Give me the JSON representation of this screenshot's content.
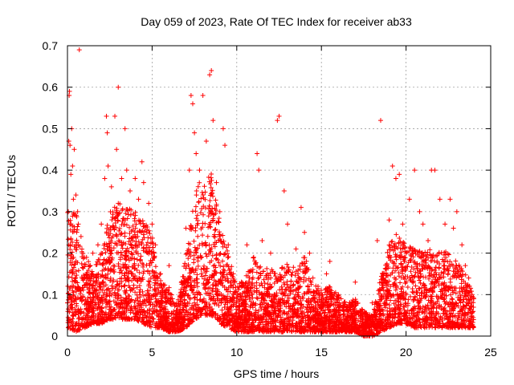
{
  "chart_data": {
    "type": "scatter",
    "title": "Day 059 of 2023, Rate Of TEC Index for receiver ab33",
    "xlabel": "GPS time / hours",
    "ylabel": "ROTI / TECUs",
    "xlim": [
      0,
      25
    ],
    "ylim": [
      0,
      0.7
    ],
    "x_ticks": [
      "0",
      "5",
      "10",
      "15",
      "20",
      "25"
    ],
    "y_ticks": [
      "0",
      "0.1",
      "0.2",
      "0.3",
      "0.4",
      "0.5",
      "0.6",
      "0.7"
    ],
    "grid": true,
    "marker": "+",
    "color": "#ff0000",
    "series": [
      {
        "points": [
          [
            0.0,
            0.08
          ],
          [
            0.05,
            0.3
          ],
          [
            0.08,
            0.47
          ],
          [
            0.1,
            0.58
          ],
          [
            0.12,
            0.59
          ],
          [
            0.15,
            0.46
          ],
          [
            0.2,
            0.39
          ],
          [
            0.25,
            0.5
          ],
          [
            0.3,
            0.41
          ],
          [
            0.35,
            0.33
          ],
          [
            0.4,
            0.45
          ],
          [
            0.5,
            0.34
          ],
          [
            0.6,
            0.3
          ],
          [
            0.7,
            0.69
          ],
          [
            0.8,
            0.24
          ],
          [
            1.0,
            0.19
          ],
          [
            1.2,
            0.14
          ],
          [
            1.5,
            0.2
          ],
          [
            1.8,
            0.22
          ],
          [
            2.0,
            0.27
          ],
          [
            2.2,
            0.38
          ],
          [
            2.3,
            0.53
          ],
          [
            2.35,
            0.49
          ],
          [
            2.4,
            0.41
          ],
          [
            2.6,
            0.36
          ],
          [
            2.8,
            0.53
          ],
          [
            2.9,
            0.45
          ],
          [
            3.0,
            0.6
          ],
          [
            3.2,
            0.38
          ],
          [
            3.4,
            0.5
          ],
          [
            3.5,
            0.4
          ],
          [
            3.7,
            0.35
          ],
          [
            4.0,
            0.38
          ],
          [
            4.2,
            0.33
          ],
          [
            4.4,
            0.42
          ],
          [
            4.5,
            0.37
          ],
          [
            4.8,
            0.32
          ],
          [
            5.0,
            0.27
          ],
          [
            5.2,
            0.22
          ],
          [
            5.5,
            0.15
          ],
          [
            5.8,
            0.11
          ],
          [
            6.0,
            0.17
          ],
          [
            6.2,
            0.09
          ],
          [
            6.5,
            0.07
          ],
          [
            6.8,
            0.1
          ],
          [
            7.0,
            0.26
          ],
          [
            7.2,
            0.4
          ],
          [
            7.3,
            0.58
          ],
          [
            7.4,
            0.56
          ],
          [
            7.5,
            0.49
          ],
          [
            7.6,
            0.44
          ],
          [
            7.8,
            0.4
          ],
          [
            8.0,
            0.58
          ],
          [
            8.2,
            0.47
          ],
          [
            8.4,
            0.63
          ],
          [
            8.5,
            0.64
          ],
          [
            8.6,
            0.52
          ],
          [
            8.8,
            0.37
          ],
          [
            9.0,
            0.3
          ],
          [
            9.2,
            0.5
          ],
          [
            9.3,
            0.46
          ],
          [
            9.5,
            0.22
          ],
          [
            9.8,
            0.15
          ],
          [
            10.0,
            0.09
          ],
          [
            10.3,
            0.12
          ],
          [
            10.6,
            0.22
          ],
          [
            11.0,
            0.19
          ],
          [
            11.2,
            0.44
          ],
          [
            11.3,
            0.4
          ],
          [
            11.5,
            0.23
          ],
          [
            11.8,
            0.15
          ],
          [
            12.0,
            0.2
          ],
          [
            12.4,
            0.52
          ],
          [
            12.5,
            0.53
          ],
          [
            12.8,
            0.35
          ],
          [
            13.0,
            0.27
          ],
          [
            13.5,
            0.21
          ],
          [
            13.8,
            0.31
          ],
          [
            14.0,
            0.25
          ],
          [
            14.3,
            0.2
          ],
          [
            14.5,
            0.14
          ],
          [
            14.8,
            0.12
          ],
          [
            15.0,
            0.1
          ],
          [
            15.3,
            0.15
          ],
          [
            15.5,
            0.18
          ],
          [
            15.8,
            0.08
          ],
          [
            16.0,
            0.1
          ],
          [
            16.3,
            0.07
          ],
          [
            16.6,
            0.06
          ],
          [
            17.0,
            0.13
          ],
          [
            17.3,
            0.06
          ],
          [
            17.6,
            0.04
          ],
          [
            17.8,
            0.02
          ],
          [
            18.0,
            0.08
          ],
          [
            18.3,
            0.23
          ],
          [
            18.5,
            0.52
          ],
          [
            18.7,
            0.15
          ],
          [
            19.0,
            0.28
          ],
          [
            19.2,
            0.41
          ],
          [
            19.4,
            0.38
          ],
          [
            19.6,
            0.39
          ],
          [
            19.8,
            0.27
          ],
          [
            20.0,
            0.2
          ],
          [
            20.2,
            0.33
          ],
          [
            20.5,
            0.4
          ],
          [
            20.8,
            0.3
          ],
          [
            21.0,
            0.27
          ],
          [
            21.3,
            0.23
          ],
          [
            21.5,
            0.4
          ],
          [
            21.7,
            0.4
          ],
          [
            22.0,
            0.33
          ],
          [
            22.3,
            0.27
          ],
          [
            22.6,
            0.33
          ],
          [
            22.8,
            0.26
          ],
          [
            23.0,
            0.3
          ],
          [
            23.3,
            0.22
          ],
          [
            23.5,
            0.17
          ],
          [
            23.7,
            0.14
          ],
          [
            23.9,
            0.1
          ],
          [
            24.0,
            0.09
          ],
          [
            0.3,
            0.05
          ],
          [
            0.8,
            0.03
          ],
          [
            1.5,
            0.06
          ],
          [
            2.5,
            0.07
          ],
          [
            3.5,
            0.09
          ],
          [
            4.5,
            0.06
          ],
          [
            5.5,
            0.04
          ],
          [
            6.5,
            0.03
          ],
          [
            7.5,
            0.08
          ],
          [
            8.5,
            0.09
          ],
          [
            9.5,
            0.05
          ],
          [
            10.5,
            0.02
          ],
          [
            11.5,
            0.04
          ],
          [
            12.5,
            0.06
          ],
          [
            13.5,
            0.03
          ],
          [
            14.5,
            0.05
          ],
          [
            15.5,
            0.03
          ],
          [
            16.5,
            0.01
          ],
          [
            17.5,
            0.01
          ],
          [
            18.5,
            0.03
          ],
          [
            19.5,
            0.07
          ],
          [
            20.5,
            0.05
          ],
          [
            21.5,
            0.06
          ],
          [
            22.5,
            0.04
          ],
          [
            23.5,
            0.05
          ]
        ]
      }
    ],
    "envelope": {
      "x": [
        0.0,
        0.5,
        1.0,
        1.5,
        2.0,
        2.5,
        3.0,
        3.5,
        4.0,
        4.5,
        5.0,
        5.5,
        6.0,
        6.5,
        7.0,
        7.5,
        8.0,
        8.5,
        9.0,
        9.5,
        10.0,
        10.5,
        11.0,
        11.5,
        12.0,
        12.5,
        13.0,
        13.5,
        14.0,
        14.5,
        15.0,
        15.5,
        16.0,
        16.5,
        17.0,
        17.5,
        18.0,
        18.5,
        19.0,
        19.5,
        20.0,
        20.5,
        21.0,
        21.5,
        22.0,
        22.5,
        23.0,
        23.5,
        24.0
      ],
      "upper": [
        0.3,
        0.32,
        0.2,
        0.16,
        0.2,
        0.3,
        0.33,
        0.31,
        0.3,
        0.28,
        0.25,
        0.14,
        0.12,
        0.08,
        0.2,
        0.36,
        0.38,
        0.4,
        0.28,
        0.2,
        0.12,
        0.14,
        0.2,
        0.16,
        0.17,
        0.16,
        0.18,
        0.16,
        0.2,
        0.13,
        0.11,
        0.12,
        0.1,
        0.08,
        0.09,
        0.06,
        0.05,
        0.14,
        0.22,
        0.25,
        0.22,
        0.22,
        0.2,
        0.22,
        0.21,
        0.2,
        0.18,
        0.15,
        0.1
      ],
      "lower": [
        0.02,
        0.01,
        0.02,
        0.03,
        0.03,
        0.04,
        0.04,
        0.04,
        0.04,
        0.03,
        0.02,
        0.02,
        0.01,
        0.01,
        0.02,
        0.04,
        0.05,
        0.05,
        0.03,
        0.02,
        0.01,
        0.01,
        0.01,
        0.01,
        0.01,
        0.01,
        0.01,
        0.01,
        0.01,
        0.01,
        0.01,
        0.01,
        0.01,
        0.01,
        0.01,
        0.0,
        0.0,
        0.01,
        0.02,
        0.03,
        0.03,
        0.02,
        0.02,
        0.02,
        0.02,
        0.02,
        0.02,
        0.02,
        0.02
      ]
    }
  }
}
